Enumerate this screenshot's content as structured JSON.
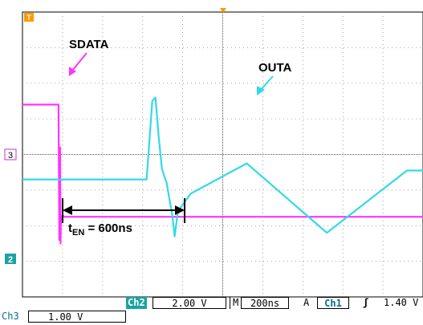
{
  "chart_data": {
    "type": "line",
    "title": "",
    "grid": true,
    "series": [
      {
        "name": "SDATA",
        "color": "#ff33ff",
        "points": [
          [
            0,
            5.4
          ],
          [
            45,
            5.4
          ],
          [
            46,
            1.6
          ],
          [
            47,
            4.2
          ],
          [
            47.5,
            1.5
          ],
          [
            48,
            2.15
          ],
          [
            50,
            2.3
          ],
          [
            52,
            2.25
          ],
          [
            60,
            2.25
          ],
          [
            100,
            2.25
          ],
          [
            200,
            2.25
          ],
          [
            300,
            2.25
          ],
          [
            400,
            2.25
          ],
          [
            500,
            2.25
          ]
        ]
      },
      {
        "name": "OUTA",
        "color": "#33d9e6",
        "points": [
          [
            0,
            3.3
          ],
          [
            100,
            3.3
          ],
          [
            150,
            3.3
          ],
          [
            155,
            3.3
          ],
          [
            162,
            5.5
          ],
          [
            166,
            5.6
          ],
          [
            170,
            4.5
          ],
          [
            174,
            3.6
          ],
          [
            180,
            3.2
          ],
          [
            187,
            2.3
          ],
          [
            190,
            1.7
          ],
          [
            194,
            2.4
          ],
          [
            210,
            2.9
          ],
          [
            280,
            3.75
          ],
          [
            380,
            1.8
          ],
          [
            480,
            3.55
          ],
          [
            500,
            3.55
          ]
        ]
      }
    ],
    "annotations": {
      "sdata_label": "SDATA",
      "outa_label": "OUTA",
      "t_en_main": "t",
      "t_en_sub": "EN",
      "t_en_value": " = 600ns"
    },
    "markers": {
      "ch3_ref": "3",
      "ch2_ref": "2",
      "trigger": "T"
    }
  },
  "status": {
    "ch2_label": "Ch2",
    "ch2_scale": "2.00 V",
    "timebase_label": "M",
    "timebase_value": "200ns",
    "trigger_mode": "A",
    "trigger_source": "Ch1",
    "trigger_slope": "ʃ",
    "trigger_level": "1.40 V",
    "ch3_label": "Ch3",
    "ch3_scale": "1.00 V"
  }
}
